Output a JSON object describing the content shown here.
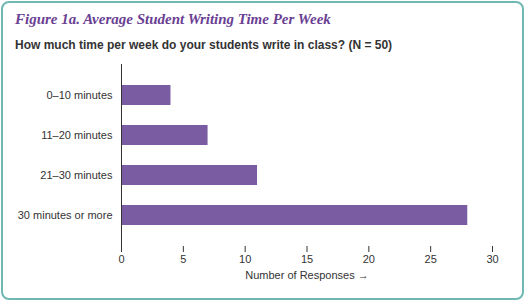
{
  "chart_data": {
    "type": "bar",
    "orientation": "horizontal",
    "title": "Figure 1a. Average Student Writing Time Per Week",
    "subtitle": "How much time per week do your students write in class? (N = 50)",
    "categories": [
      "0–10 minutes",
      "11–20 minutes",
      "21–30 minutes",
      "30 minutes or more"
    ],
    "values": [
      4,
      7,
      11,
      28
    ],
    "color": "#7a5ca3",
    "x_label": "Number of Responses",
    "xlim": [
      0,
      30
    ],
    "xticks": [
      0,
      5,
      10,
      15,
      20,
      25,
      30
    ],
    "grid": false
  }
}
